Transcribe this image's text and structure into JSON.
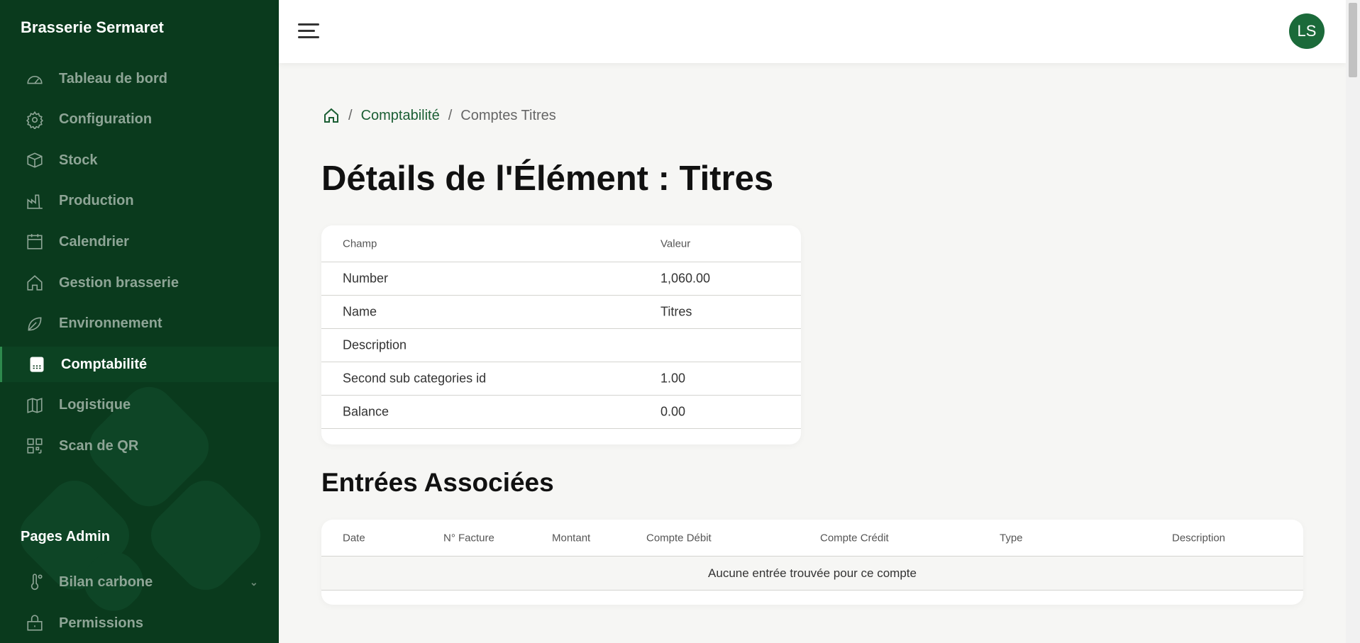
{
  "sidebar": {
    "brand": "Brasserie Sermaret",
    "items": [
      {
        "label": "Tableau de bord",
        "icon": "gauge-icon"
      },
      {
        "label": "Configuration",
        "icon": "gear-icon"
      },
      {
        "label": "Stock",
        "icon": "box-icon"
      },
      {
        "label": "Production",
        "icon": "factory-icon"
      },
      {
        "label": "Calendrier",
        "icon": "calendar-icon"
      },
      {
        "label": "Gestion brasserie",
        "icon": "home-icon"
      },
      {
        "label": "Environnement",
        "icon": "leaf-icon"
      },
      {
        "label": "Comptabilité",
        "icon": "calculator-icon",
        "active": true
      },
      {
        "label": "Logistique",
        "icon": "map-icon"
      },
      {
        "label": "Scan de QR",
        "icon": "qr-icon"
      }
    ],
    "admin_title": "Pages Admin",
    "admin_items": [
      {
        "label": "Bilan carbone",
        "icon": "thermometer-icon"
      },
      {
        "label": "Permissions",
        "icon": "lock-icon"
      }
    ]
  },
  "header": {
    "avatar": "LS"
  },
  "breadcrumb": {
    "parent": "Comptabilité",
    "current": "Comptes Titres",
    "sep": "/"
  },
  "title": "Détails de l'Élément : Titres",
  "details": {
    "headers": [
      "Champ",
      "Valeur"
    ],
    "rows": [
      {
        "field": "Number",
        "value": "1,060.00"
      },
      {
        "field": "Name",
        "value": "Titres"
      },
      {
        "field": "Description",
        "value": ""
      },
      {
        "field": "Second sub categories id",
        "value": "1.00"
      },
      {
        "field": "Balance",
        "value": "0.00"
      }
    ]
  },
  "entries": {
    "title": "Entrées Associées",
    "headers": [
      "Date",
      "N° Facture",
      "Montant",
      "Compte Débit",
      "Compte Crédit",
      "Type",
      "Description"
    ],
    "empty": "Aucune entrée trouvée pour ce compte"
  },
  "colors": {
    "sidebar": "#0a3a1d",
    "accent": "#1b6a3a"
  }
}
